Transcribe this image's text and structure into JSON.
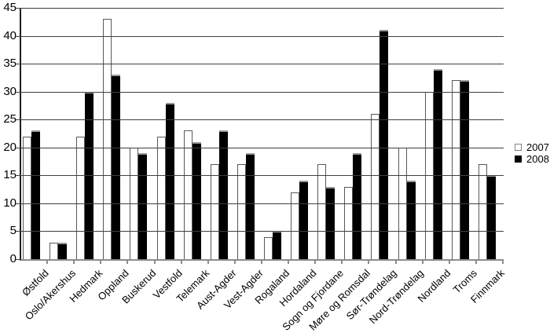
{
  "chart_data": {
    "type": "bar",
    "title": "",
    "categories": [
      "Østfold",
      "Oslo/Akershus",
      "Hedmark",
      "Oppland",
      "Buskerud",
      "Vestfold",
      "Telemark",
      "Aust-Agder",
      "Vest-Agder",
      "Rogaland",
      "Hordaland",
      "Sogn og Fjordane",
      "Møre og Romsdal",
      "Sør-Trøndelag",
      "Nord-Trøndelag",
      "Nordland",
      "Troms",
      "Finnmark"
    ],
    "series": [
      {
        "name": "2007",
        "fill": "#ffffff",
        "border": "#595959",
        "values": [
          22,
          3,
          22,
          43,
          20,
          22,
          23,
          17,
          17,
          4,
          12,
          17,
          13,
          26,
          20,
          30,
          32,
          17
        ]
      },
      {
        "name": "2008",
        "fill": "#000000",
        "border": "#999999",
        "values": [
          23,
          3,
          30,
          33,
          19,
          28,
          21,
          23,
          19,
          5,
          14,
          13,
          19,
          41,
          14,
          34,
          32,
          15
        ]
      }
    ],
    "xlabel": "",
    "ylabel": "",
    "ylim": [
      0,
      45
    ],
    "yticks": [
      0,
      5,
      10,
      15,
      20,
      25,
      30,
      35,
      40,
      45
    ],
    "grid": "horizontal",
    "legend_position": "right",
    "axis_colors": {
      "gridline": "#3f3f3f",
      "y_axis": "#1f1f1f",
      "baseline": "#8c8c8c"
    }
  }
}
